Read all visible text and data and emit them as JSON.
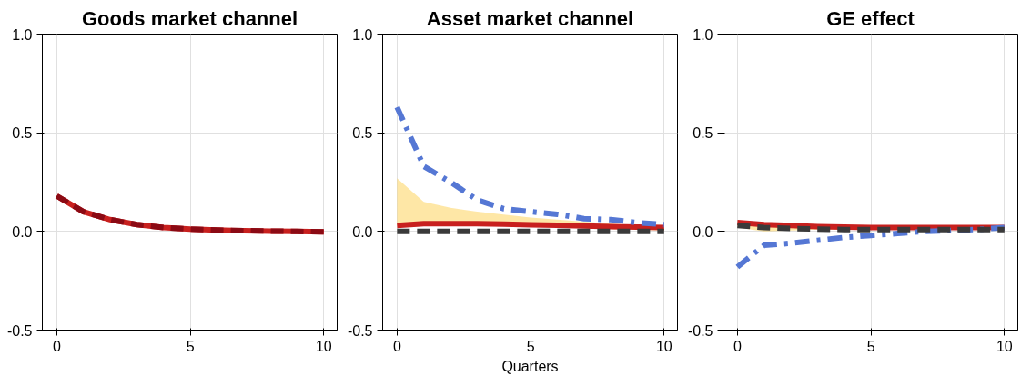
{
  "chart_data": [
    {
      "type": "line",
      "title": "Goods market channel",
      "x": [
        0,
        1,
        2,
        3,
        4,
        5,
        6,
        7,
        8,
        9,
        10
      ],
      "xlim": [
        -0.54,
        10.5
      ],
      "ylim": [
        -0.5,
        1.0
      ],
      "xticks": [
        0,
        5,
        10
      ],
      "yticks": [
        {
          "value": -0.5,
          "label": "-0.5"
        },
        {
          "value": 0,
          "label": "0.0"
        },
        {
          "value": 0.5,
          "label": "0.5"
        },
        {
          "value": 1,
          "label": "1.0"
        }
      ],
      "grid": true,
      "series": [
        {
          "color": "#c8201e",
          "line_style": "solid",
          "values": [
            0.18,
            0.1,
            0.06,
            0.035,
            0.02,
            0.012,
            0.007,
            0.004,
            0.002,
            0.0,
            -0.002
          ]
        },
        {
          "color": "#8b0a14",
          "line_style": "dashed",
          "values": [
            0.18,
            0.1,
            0.06,
            0.035,
            0.02,
            0.012,
            0.007,
            0.004,
            0.002,
            0.0,
            -0.002
          ]
        }
      ]
    },
    {
      "type": "line",
      "title": "Asset market channel",
      "xlabel": "Quarters",
      "x": [
        0,
        1,
        2,
        3,
        4,
        5,
        6,
        7,
        8,
        9,
        10
      ],
      "xlim": [
        -0.54,
        10.5
      ],
      "ylim": [
        -0.5,
        1.0
      ],
      "xticks": [
        0,
        5,
        10
      ],
      "yticks": [
        {
          "value": -0.5,
          "label": "-0.5"
        },
        {
          "value": 0,
          "label": "0.0"
        },
        {
          "value": 0.5,
          "label": "0.5"
        },
        {
          "value": 1,
          "label": "1.0"
        }
      ],
      "grid": true,
      "series": [
        {
          "color": "#c8201e",
          "line_style": "solid",
          "values": [
            0.03,
            0.04,
            0.04,
            0.04,
            0.037,
            0.034,
            0.031,
            0.028,
            0.025,
            0.022,
            0.02
          ],
          "lower": [
            0.03,
            0.035,
            0.035,
            0.035,
            0.032,
            0.028,
            0.024,
            0.018,
            0.012,
            0.008,
            0.005
          ],
          "upper": [
            0.27,
            0.15,
            0.12,
            0.1,
            0.085,
            0.07,
            0.06,
            0.05,
            0.04,
            0.03,
            0.02
          ]
        },
        {
          "color": "#5577d4",
          "line_style": "dashdot",
          "values": [
            0.63,
            0.33,
            0.25,
            0.16,
            0.115,
            0.1,
            0.087,
            0.065,
            0.06,
            0.045,
            0.035
          ]
        },
        {
          "color": "#3a3a3a",
          "line_style": "dashed",
          "values": [
            0,
            0,
            0,
            0,
            0,
            0,
            0,
            0,
            0,
            0,
            0
          ]
        }
      ]
    },
    {
      "type": "line",
      "title": "GE effect",
      "x": [
        0,
        1,
        2,
        3,
        4,
        5,
        6,
        7,
        8,
        9,
        10
      ],
      "xlim": [
        -0.54,
        10.5
      ],
      "ylim": [
        -0.5,
        1.0
      ],
      "xticks": [
        0,
        5,
        10
      ],
      "yticks": [
        {
          "value": -0.5,
          "label": "-0.5"
        },
        {
          "value": 0,
          "label": "0.0"
        },
        {
          "value": 0.5,
          "label": "0.5"
        },
        {
          "value": 1,
          "label": "1.0"
        }
      ],
      "grid": true,
      "series": [
        {
          "color": "#c8201e",
          "line_style": "solid",
          "values": [
            0.045,
            0.035,
            0.03,
            0.025,
            0.022,
            0.02,
            0.02,
            0.02,
            0.02,
            0.02,
            0.02
          ],
          "lower": [
            0.02,
            0.0,
            0.005,
            0.01,
            0.01,
            0.012,
            0.014,
            0.015,
            0.015,
            0.016,
            0.016
          ],
          "upper": [
            0.045,
            0.035,
            0.03,
            0.027,
            0.025,
            0.023,
            0.023,
            0.023,
            0.023,
            0.023,
            0.023
          ]
        },
        {
          "color": "#5577d4",
          "line_style": "dashdot",
          "values": [
            -0.18,
            -0.07,
            -0.06,
            -0.045,
            -0.03,
            -0.02,
            -0.01,
            0.0,
            0.005,
            0.01,
            0.02
          ]
        },
        {
          "color": "#3a3a3a",
          "line_style": "dashed",
          "values": [
            0.03,
            0.02,
            0.015,
            0.012,
            0.01,
            0.01,
            0.01,
            0.01,
            0.01,
            0.01,
            0.01
          ]
        }
      ]
    }
  ]
}
